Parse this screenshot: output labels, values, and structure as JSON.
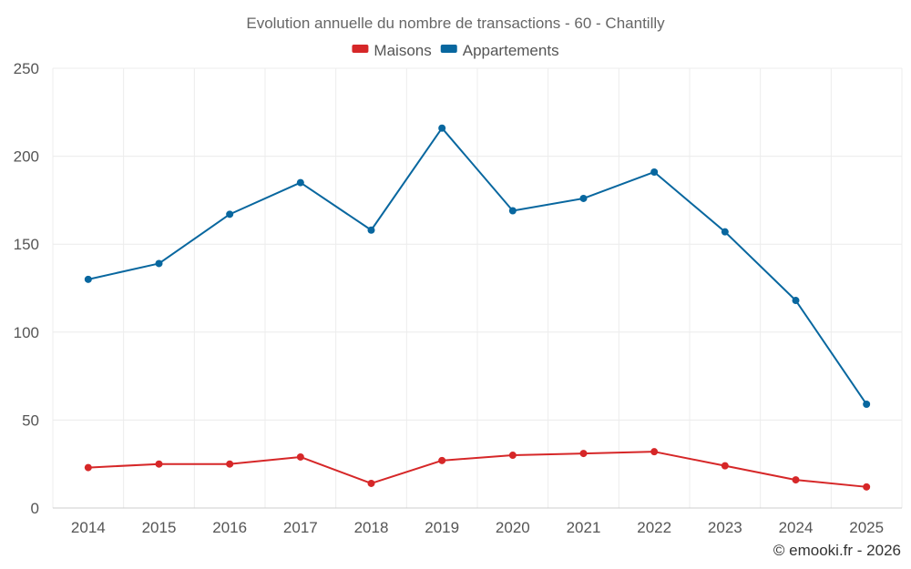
{
  "chart_data": {
    "type": "line",
    "title": "Evolution annuelle du nombre de transactions - 60 - Chantilly",
    "xlabel": "",
    "ylabel": "",
    "categories": [
      "2014",
      "2015",
      "2016",
      "2017",
      "2018",
      "2019",
      "2020",
      "2021",
      "2022",
      "2023",
      "2024",
      "2025"
    ],
    "ylim": [
      0,
      250
    ],
    "yticks": [
      "0",
      "50",
      "100",
      "150",
      "200",
      "250"
    ],
    "grid": true,
    "legend_position": "top-center",
    "series": [
      {
        "name": "Maisons",
        "color": "#d62728",
        "values": [
          23,
          25,
          25,
          29,
          14,
          27,
          30,
          31,
          32,
          24,
          16,
          12
        ]
      },
      {
        "name": "Appartements",
        "color": "#08679f",
        "values": [
          130,
          139,
          167,
          185,
          158,
          216,
          169,
          176,
          191,
          157,
          118,
          59
        ]
      }
    ]
  },
  "credit": "© emooki.fr - 2026"
}
